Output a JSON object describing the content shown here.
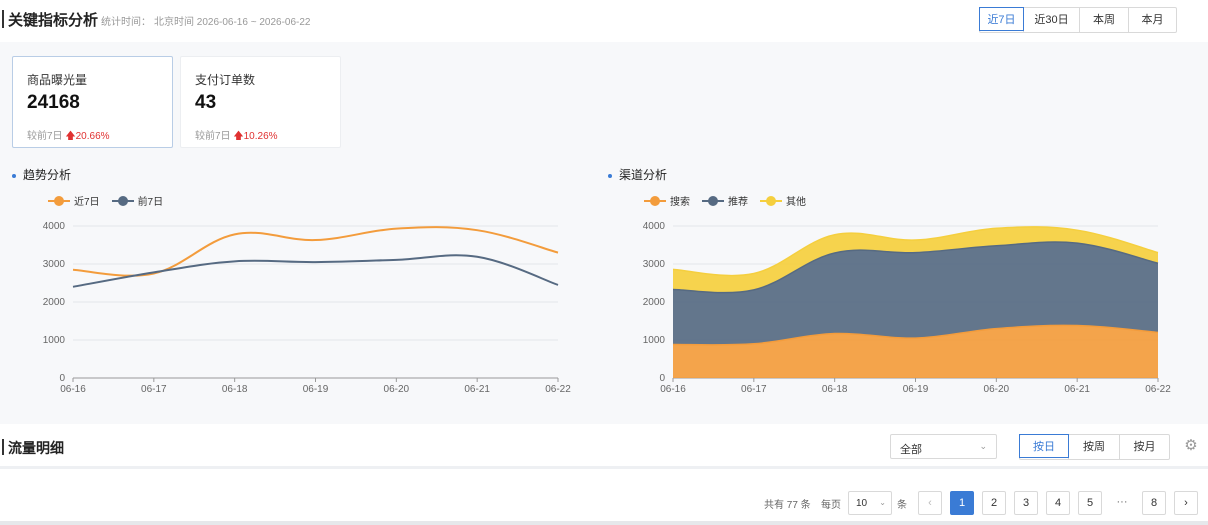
{
  "header": {
    "title": "关键指标分析",
    "stat_label": "统计时间：",
    "stat_value": "北京时间 2026-06-16 ~ 2026-06-22",
    "range_options": [
      "近7日",
      "近30日",
      "本周",
      "本月"
    ],
    "active_range": 0
  },
  "cards": [
    {
      "label": "商品曝光量",
      "value": "24168",
      "compare_label": "较前7日",
      "compare_value": "20.66%",
      "arrow": "up"
    },
    {
      "label": "支付订单数",
      "value": "43",
      "compare_label": "较前7日",
      "compare_value": "10.26%",
      "arrow": "up"
    }
  ],
  "trend": {
    "title": "趋势分析",
    "legend": [
      "近7日",
      "前7日"
    ]
  },
  "channel": {
    "title": "渠道分析",
    "legend": [
      "搜索",
      "推荐",
      "其他"
    ]
  },
  "colors": {
    "accent": "#3a7bd5",
    "orange": "#f39c3c",
    "slate": "#566a82",
    "yellow": "#f5cf3e",
    "up": "#e03131"
  },
  "chart_data": [
    {
      "type": "line",
      "title": "趋势分析",
      "categories": [
        "06-16",
        "06-17",
        "06-18",
        "06-19",
        "06-20",
        "06-21",
        "06-22"
      ],
      "ylim": [
        0,
        4000
      ],
      "yticks": [
        0,
        1000,
        2000,
        3000,
        4000
      ],
      "grid": true,
      "legend_position": "top-left",
      "series": [
        {
          "name": "近7日",
          "color": "#f39c3c",
          "values": [
            2850,
            2750,
            3780,
            3630,
            3930,
            3890,
            3300
          ]
        },
        {
          "name": "前7日",
          "color": "#566a82",
          "values": [
            2400,
            2780,
            3070,
            3050,
            3110,
            3190,
            2450
          ]
        }
      ]
    },
    {
      "type": "area",
      "stacked": true,
      "title": "渠道分析",
      "categories": [
        "06-16",
        "06-17",
        "06-18",
        "06-19",
        "06-20",
        "06-21",
        "06-22"
      ],
      "ylim": [
        0,
        4000
      ],
      "yticks": [
        0,
        1000,
        2000,
        3000,
        4000
      ],
      "grid": true,
      "legend_position": "top-left",
      "series": [
        {
          "name": "搜索",
          "color": "#f39c3c",
          "values": [
            880,
            900,
            1170,
            1050,
            1300,
            1380,
            1200
          ]
        },
        {
          "name": "推荐",
          "color": "#566a82",
          "values": [
            1450,
            1420,
            2120,
            2250,
            2180,
            2170,
            1820
          ]
        },
        {
          "name": "其他",
          "color": "#f5cf3e",
          "values": [
            530,
            430,
            480,
            330,
            460,
            340,
            280
          ]
        }
      ]
    }
  ],
  "detail": {
    "title": "流量明细",
    "filter_value": "全部",
    "group_options": [
      "按日",
      "按周",
      "按月"
    ],
    "active_group": 0
  },
  "pagination": {
    "total_text": "共有 77 条",
    "per_page_label": "每页",
    "page_size": "10",
    "unit": "条",
    "pages": [
      "1",
      "2",
      "3",
      "4",
      "5"
    ],
    "ellipsis": "···",
    "last_page": "8",
    "current": "1"
  }
}
